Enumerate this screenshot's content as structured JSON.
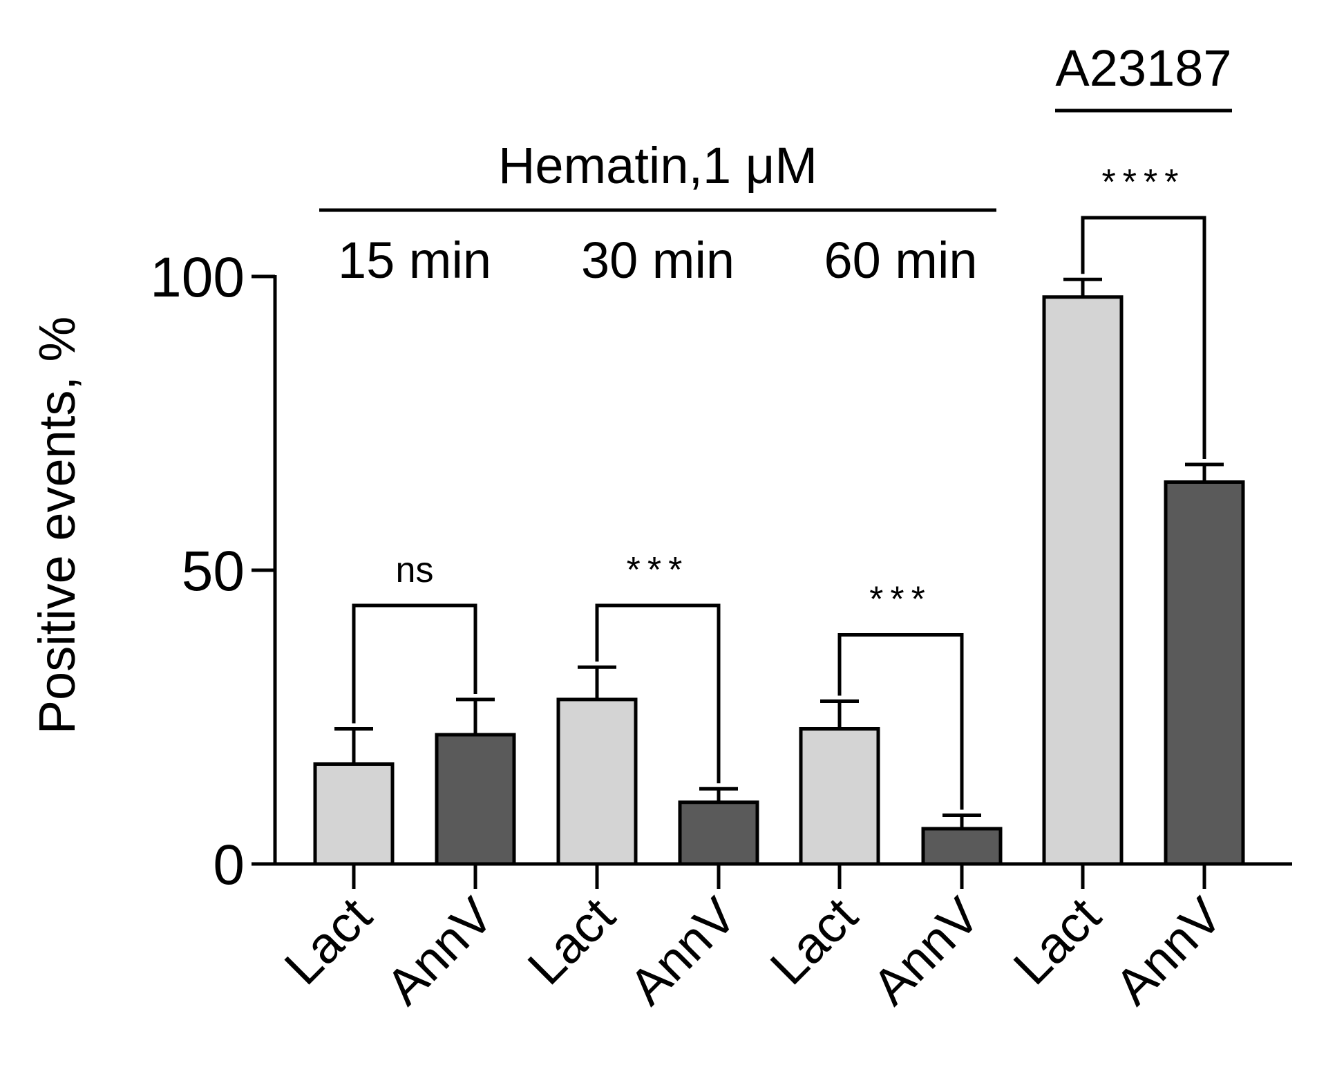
{
  "chart_data": {
    "type": "bar",
    "title": "",
    "xlabel": "",
    "ylabel": "Positive events, %",
    "ylim": [
      0,
      100
    ],
    "yticks": [
      0,
      50,
      100
    ],
    "grid": false,
    "categories": [
      "Lact",
      "AnnV",
      "Lact",
      "AnnV",
      "Lact",
      "AnnV",
      "Lact",
      "AnnV"
    ],
    "values": [
      17,
      22,
      28,
      10.5,
      23,
      6,
      96.5,
      65
    ],
    "errors": [
      6,
      6,
      5.5,
      2.3,
      4.7,
      2.3,
      3,
      3
    ],
    "bar_colors": [
      "#d4d4d4",
      "#5a5a5a",
      "#d4d4d4",
      "#5a5a5a",
      "#d4d4d4",
      "#5a5a5a",
      "#d4d4d4",
      "#5a5a5a"
    ],
    "groups": [
      {
        "label": "15 min",
        "indices": [
          0,
          1
        ]
      },
      {
        "label": "30 min",
        "indices": [
          2,
          3
        ]
      },
      {
        "label": "60 min",
        "indices": [
          4,
          5
        ]
      }
    ],
    "group_headers": [
      {
        "label": "Hematin,1 μM",
        "indices": [
          0,
          5
        ]
      },
      {
        "label": "A23187",
        "indices": [
          6,
          7
        ]
      }
    ],
    "comparisons": [
      {
        "indices": [
          0,
          1
        ],
        "label": "ns",
        "level": 44
      },
      {
        "indices": [
          2,
          3
        ],
        "label": "***",
        "level": 44
      },
      {
        "indices": [
          4,
          5
        ],
        "label": "***",
        "level": 39
      },
      {
        "indices": [
          6,
          7
        ],
        "label": "****",
        "level": 110
      }
    ]
  }
}
